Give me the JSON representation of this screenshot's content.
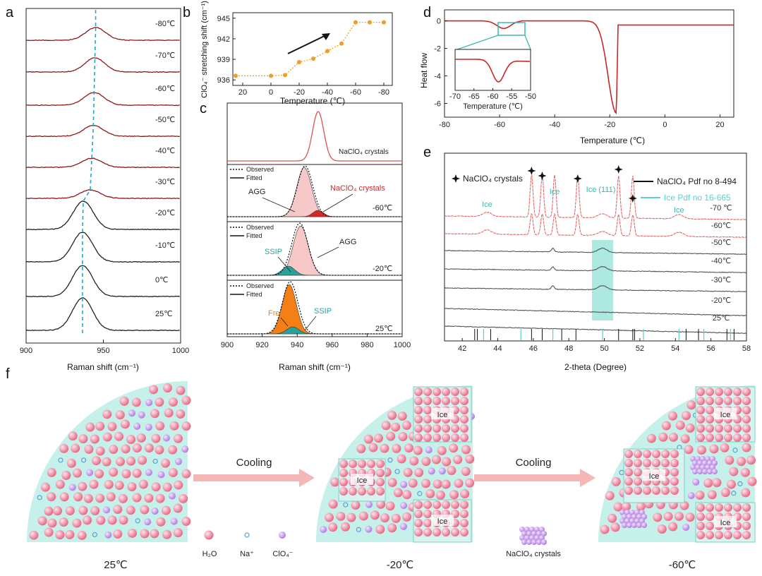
{
  "panels": {
    "a": "a",
    "b": "b",
    "c": "c",
    "d": "d",
    "e": "e",
    "f": "f"
  },
  "chart_data": [
    {
      "panel": "a",
      "type": "line",
      "xlabel": "Raman shift (cm⁻¹)",
      "x_ticks": [
        900,
        950,
        1000
      ],
      "xlim": [
        900,
        1000
      ],
      "series": [
        {
          "name": "-80℃",
          "peak": 945.0,
          "height": 0.45
        },
        {
          "name": "-70℃",
          "peak": 944.5,
          "height": 0.5
        },
        {
          "name": "-60℃",
          "peak": 944.0,
          "height": 0.45
        },
        {
          "name": "-50℃",
          "peak": 943.5,
          "height": 0.38
        },
        {
          "name": "-40℃",
          "peak": 942.5,
          "height": 0.32
        },
        {
          "name": "-30℃",
          "peak": 941.5,
          "height": 0.3
        },
        {
          "name": "-20℃",
          "peak": 937.0,
          "height": 1.0
        },
        {
          "name": "-10℃",
          "peak": 936.5,
          "height": 1.05
        },
        {
          "name": "0℃",
          "peak": 936.5,
          "height": 1.1
        },
        {
          "name": "25℃",
          "peak": 936.5,
          "height": 1.15
        }
      ]
    },
    {
      "panel": "b",
      "type": "scatter",
      "ylabel": "ClO₄⁻ stretching shift (cm⁻¹)",
      "xlabel": "Temperature (℃)",
      "x": [
        25,
        0,
        -10,
        -20,
        -30,
        -40,
        -50,
        -60,
        -70,
        -80
      ],
      "y": [
        936.6,
        936.6,
        936.7,
        938.6,
        939.1,
        940.2,
        941.3,
        944.4,
        944.4,
        944.4
      ],
      "x_ticks": [
        20,
        0,
        -20,
        -40,
        -60,
        -80
      ],
      "y_ticks": [
        936,
        939,
        942,
        945
      ],
      "xlim": [
        27,
        -86
      ],
      "ylim": [
        935.2,
        945.8
      ],
      "color": "#f39c24"
    },
    {
      "panel": "c",
      "type": "line",
      "xlabel": "Raman shift (cm⁻¹)",
      "x_ticks": [
        900,
        920,
        940,
        960,
        980,
        1000
      ],
      "xlim": [
        900,
        1000
      ],
      "subpanels": [
        {
          "label": "NaClO₄ crystals",
          "peak": 952
        },
        {
          "temp": "-60℃",
          "legend": [
            "Observed",
            "Fitted"
          ],
          "components": [
            {
              "name": "AGG",
              "peak": 944,
              "color": "#f7c8c8"
            },
            {
              "name": "NaClO₄ crystals",
              "peak": 952,
              "color": "#d62728"
            }
          ]
        },
        {
          "temp": "-20℃",
          "legend": [
            "Observed",
            "Fitted"
          ],
          "components": [
            {
              "name": "AGG",
              "peak": 942,
              "color": "#f7c8c8"
            },
            {
              "name": "SSIP",
              "peak": 935,
              "color": "#2aa198"
            }
          ]
        },
        {
          "temp": "25℃",
          "legend": [
            "Observed",
            "Fitted"
          ],
          "components": [
            {
              "name": "Free",
              "peak": 935,
              "color": "#f57f17"
            },
            {
              "name": "SSIP",
              "peak": 937,
              "color": "#2aa198"
            }
          ]
        }
      ]
    },
    {
      "panel": "d",
      "type": "line",
      "ylabel": "Heat flow",
      "xlabel": "Temperature (℃)",
      "x_ticks": [
        -80,
        -60,
        -40,
        -20,
        0,
        20
      ],
      "y_ticks": [
        0,
        -2,
        -4,
        -6
      ],
      "xlim": [
        -80,
        25
      ],
      "ylim": [
        -7,
        0.8
      ],
      "inset": {
        "xlabel": "Temperature (℃)",
        "x_ticks": [
          -70,
          -65,
          -60,
          -55,
          -50
        ],
        "xlim": [
          -70,
          -50
        ],
        "min_at": -58.5
      }
    },
    {
      "panel": "e",
      "type": "line",
      "xlabel": "2-theta (Degree)",
      "x_ticks": [
        42,
        44,
        46,
        48,
        50,
        52,
        54,
        56,
        58
      ],
      "xlim": [
        41,
        58
      ],
      "legend": {
        "star": "NaClO₄ crystals",
        "black_line": "NaClO₄ Pdf no 8-494",
        "cyan_line": "Ice Pdf no 16-665"
      },
      "annotations": [
        "Ice",
        "Ice",
        "Ice (111)",
        "Ice"
      ],
      "series": [
        "-70 ℃",
        "-60℃",
        "-50℃",
        "-40℃",
        "-30℃",
        "-20℃",
        "25℃"
      ],
      "nacl_peaks": [
        45.9,
        46.5,
        47.2,
        48.5,
        50.8,
        51.6
      ],
      "ice_peaks": [
        43.4,
        49.9,
        54.2
      ],
      "ref_black": [
        42.7,
        42.85,
        43.6,
        45.9,
        46.5,
        47.6,
        48.4,
        50.8,
        51.6,
        51.7,
        54.6,
        55.3,
        56.9,
        57.3
      ],
      "ref_cyan": [
        43.2,
        45.3,
        47.1,
        49.9,
        52.2,
        54.2,
        55.6,
        57.1
      ]
    }
  ],
  "schematic": {
    "arrow1": "Cooling",
    "arrow2": "Cooling",
    "ice": "Ice",
    "stages": [
      "25℃",
      "-20℃",
      "-60℃"
    ],
    "legend": {
      "water": "H₂O",
      "na": "Na⁺",
      "clo4": "ClO₄⁻",
      "crystals": "NaClO₄ crystals"
    }
  }
}
